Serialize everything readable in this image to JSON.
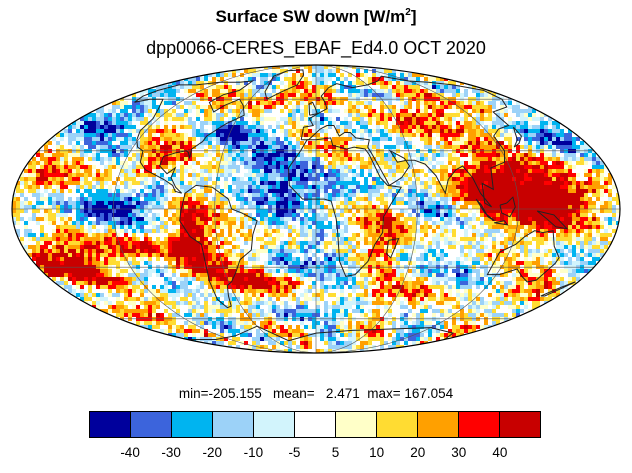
{
  "title": {
    "main": "Surface SW down [W/m",
    "sup": "2",
    "close": "]",
    "subtitle": "dpp0066-CERES_EBAF_Ed4.0  OCT 2020"
  },
  "stats": {
    "text": "min=-205.155   mean=   2.471  max= 167.054",
    "min": -205.155,
    "mean": 2.471,
    "max": 167.054
  },
  "colorbar": {
    "colors": [
      "#00009c",
      "#3c64dc",
      "#00b4f0",
      "#9cd2f8",
      "#d2f4fc",
      "#ffffff",
      "#ffffc8",
      "#ffdc32",
      "#ffa000",
      "#ff0000",
      "#c80000"
    ],
    "labels": [
      "-40",
      "-30",
      "-20",
      "-10",
      "-5",
      "5",
      "10",
      "20",
      "30",
      "40"
    ]
  },
  "map": {
    "projection": "Mollweide",
    "field": "Surface SW down difference",
    "gridlines": true,
    "coastlines": true
  }
}
